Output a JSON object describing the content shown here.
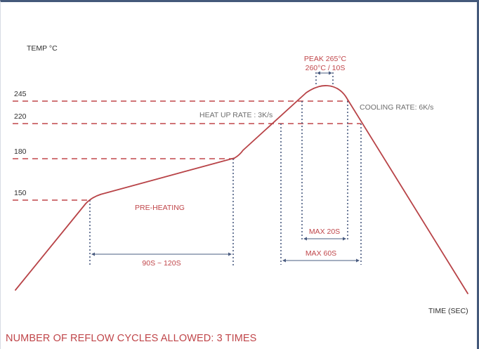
{
  "colors": {
    "curve": "#b84347",
    "dash_red": "#c0464a",
    "dash_blue": "#4a5c80",
    "frame": "#44597a",
    "text_dark": "#2f2f2f",
    "text_red": "#c0464a",
    "text_grey": "#6d6d6d"
  },
  "axes": {
    "y_title": "TEMP °C",
    "x_title": "TIME (SEC)"
  },
  "levels": [
    {
      "label": "245",
      "temp": 245
    },
    {
      "label": "220",
      "temp": 220
    },
    {
      "label": "180",
      "temp": 180
    },
    {
      "label": "150",
      "temp": 150
    }
  ],
  "annotations": {
    "peak_line1": "PEAK 265°C",
    "peak_line2": "260°C / 10S",
    "heat_up_rate": "HEAT UP RATE : 3K/s",
    "cooling_rate": "COOLING RATE: 6K/s",
    "pre_heating": "PRE-HEATING",
    "preheat_window": "90S ~ 120S",
    "max_20s": "MAX 20S",
    "max_60s": "MAX 60S"
  },
  "footer": "NUMBER OF REFLOW CYCLES ALLOWED: 3 TIMES"
}
